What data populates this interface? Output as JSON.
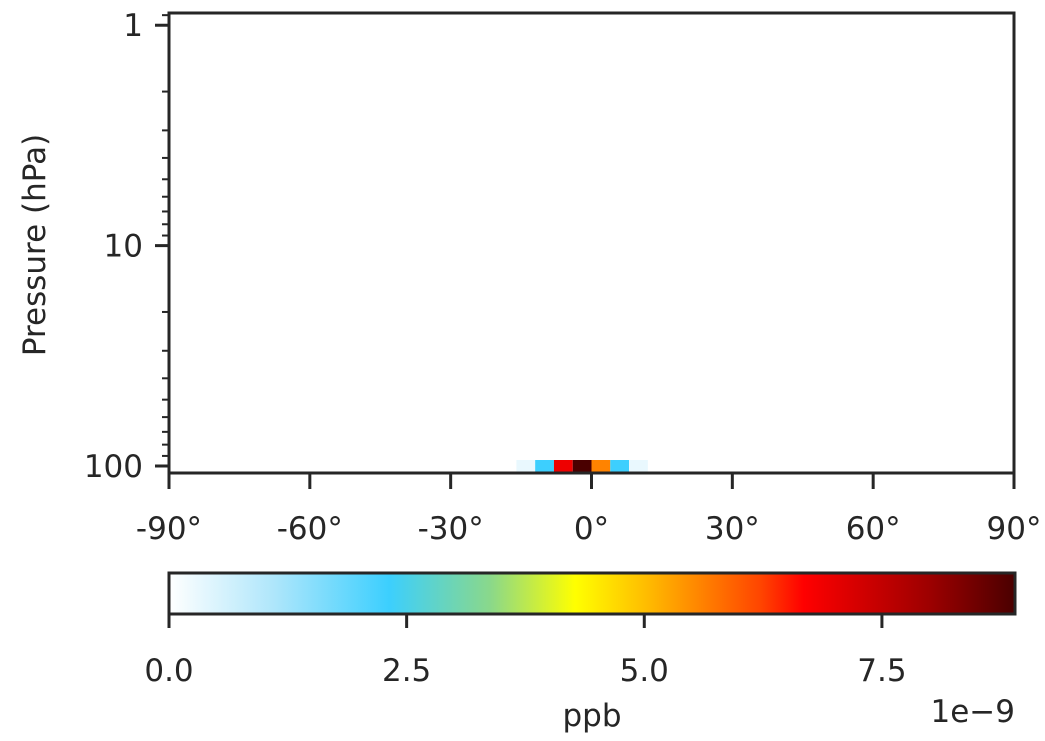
{
  "chart_data": {
    "type": "heatmap",
    "title": "",
    "xlabel": "",
    "ylabel": "Pressure (hPa)",
    "x_ticks": [
      {
        "value": -90,
        "label": "-90°"
      },
      {
        "value": -60,
        "label": "-60°"
      },
      {
        "value": -30,
        "label": "-30°"
      },
      {
        "value": 0,
        "label": "0°"
      },
      {
        "value": 30,
        "label": "30°"
      },
      {
        "value": 60,
        "label": "60°"
      },
      {
        "value": 90,
        "label": "90°"
      }
    ],
    "xlim": [
      -90,
      90
    ],
    "y_scale": "log",
    "y_inverted": true,
    "y_ticks": [
      {
        "value": 1,
        "label": "1"
      },
      {
        "value": 10,
        "label": "10"
      },
      {
        "value": 100,
        "label": "100"
      }
    ],
    "ylim": [
      100,
      0.88
    ],
    "cells": [
      {
        "lat": -16,
        "pressure": 100,
        "value": 3e-10
      },
      {
        "lat": -12,
        "pressure": 100,
        "value": 2.3e-09
      },
      {
        "lat": -8,
        "pressure": 100,
        "value": 6.9e-09
      },
      {
        "lat": -4,
        "pressure": 100,
        "value": 9e-09
      },
      {
        "lat": 0,
        "pressure": 100,
        "value": 5.6e-09
      },
      {
        "lat": 4,
        "pressure": 100,
        "value": 2.3e-09
      },
      {
        "lat": 8,
        "pressure": 100,
        "value": 3e-10
      }
    ],
    "cell_width_deg": 4,
    "colorbar": {
      "label": "ppb",
      "offset_text": "1e−9",
      "vmin": 0,
      "vmax": 8.9,
      "ticks": [
        {
          "value": 0.0,
          "label": "0.0"
        },
        {
          "value": 2.5,
          "label": "2.5"
        },
        {
          "value": 5.0,
          "label": "5.0"
        },
        {
          "value": 7.5,
          "label": "7.5"
        }
      ],
      "colormap": [
        {
          "pos": 0.0,
          "color": "#ffffff"
        },
        {
          "pos": 0.125,
          "color": "#aee6fb"
        },
        {
          "pos": 0.26,
          "color": "#3ccffe"
        },
        {
          "pos": 0.38,
          "color": "#8ad88a"
        },
        {
          "pos": 0.48,
          "color": "#ffff00"
        },
        {
          "pos": 0.56,
          "color": "#ffc000"
        },
        {
          "pos": 0.7,
          "color": "#ff4400"
        },
        {
          "pos": 0.75,
          "color": "#ff0000"
        },
        {
          "pos": 0.9,
          "color": "#9c0000"
        },
        {
          "pos": 1.0,
          "color": "#4a0000"
        }
      ]
    }
  }
}
